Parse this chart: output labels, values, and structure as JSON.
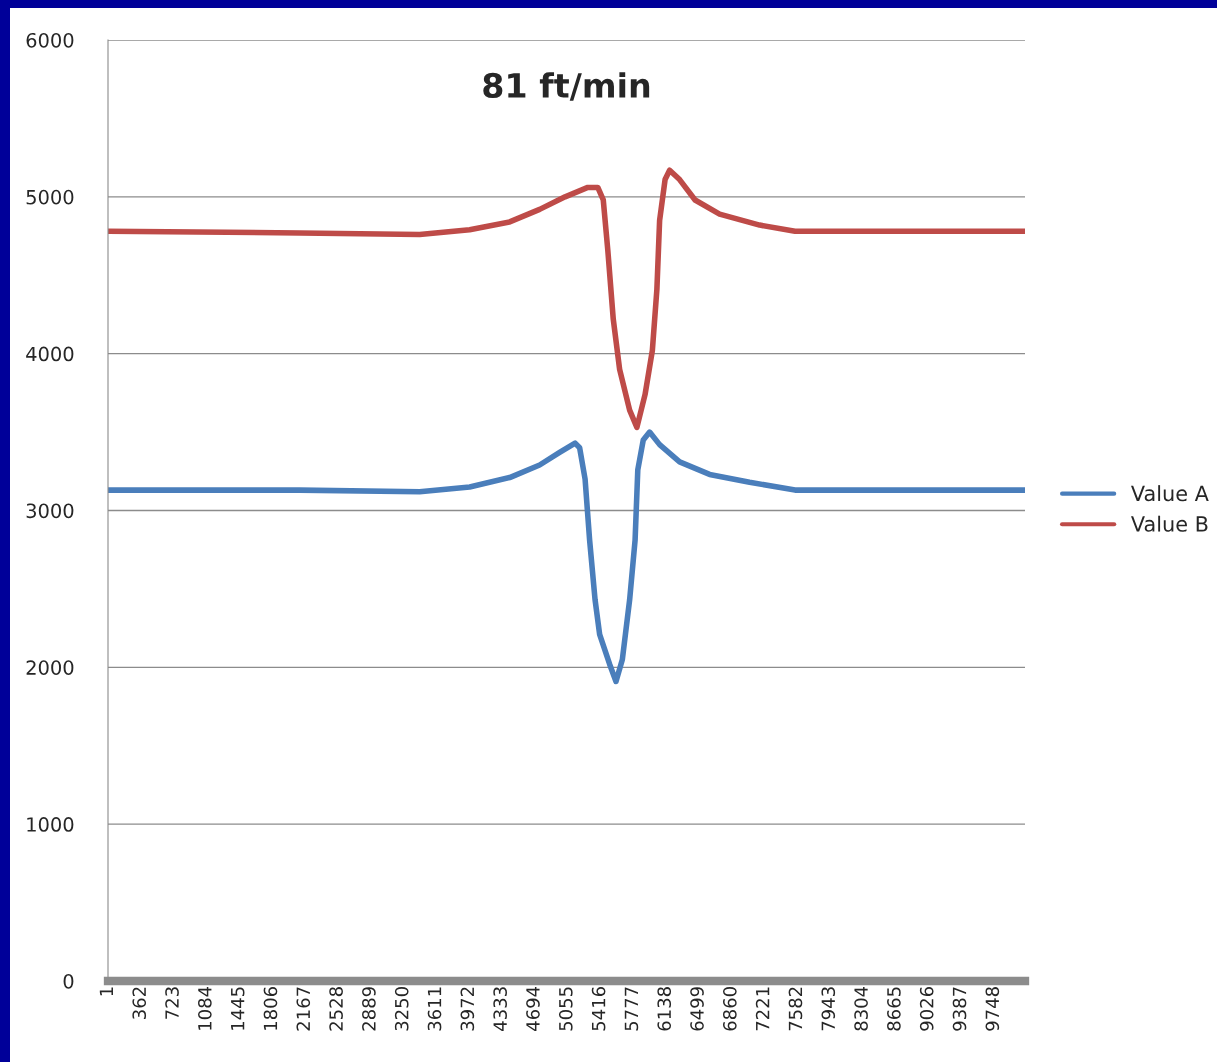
{
  "chart_data": {
    "type": "line",
    "title": "81 ft/min",
    "xlim": [
      1,
      10090
    ],
    "xticks": [
      1,
      362,
      723,
      1084,
      1445,
      1806,
      2167,
      2528,
      2889,
      3250,
      3611,
      3972,
      4333,
      4694,
      5055,
      5416,
      5777,
      6138,
      6499,
      6860,
      7221,
      7582,
      7943,
      8304,
      8665,
      9026,
      9387,
      9748
    ],
    "ylim": [
      0,
      6000
    ],
    "yticks": [
      0,
      1000,
      2000,
      3000,
      4000,
      5000,
      6000
    ],
    "grid": "y",
    "legend": "right",
    "line_style": "solid",
    "marker": "none",
    "series": [
      {
        "name": "Value A",
        "color": "#4a7ebb",
        "x": [
          1,
          2110,
          3430,
          3980,
          4420,
          4750,
          4970,
          5140,
          5190,
          5250,
          5300,
          5360,
          5410,
          5520,
          5590,
          5660,
          5740,
          5800,
          5830,
          5890,
          5960,
          6070,
          6290,
          6620,
          7060,
          7560,
          10090
        ],
        "values": [
          3130,
          3130,
          3120,
          3150,
          3210,
          3290,
          3370,
          3430,
          3400,
          3200,
          2810,
          2430,
          2210,
          2020,
          1910,
          2050,
          2430,
          2810,
          3260,
          3450,
          3500,
          3420,
          3310,
          3230,
          3180,
          3130,
          3130
        ]
      },
      {
        "name": "Value B",
        "color": "#be4b48",
        "x": [
          1,
          2110,
          3430,
          3980,
          4420,
          4750,
          5030,
          5280,
          5390,
          5450,
          5500,
          5560,
          5630,
          5740,
          5820,
          5910,
          5990,
          6040,
          6070,
          6130,
          6180,
          6290,
          6460,
          6730,
          7170,
          7560,
          10090
        ],
        "values": [
          4780,
          4770,
          4760,
          4790,
          4840,
          4920,
          5000,
          5060,
          5060,
          4980,
          4660,
          4220,
          3900,
          3640,
          3530,
          3740,
          4020,
          4410,
          4850,
          5110,
          5170,
          5110,
          4980,
          4890,
          4820,
          4780,
          4780
        ]
      }
    ]
  }
}
